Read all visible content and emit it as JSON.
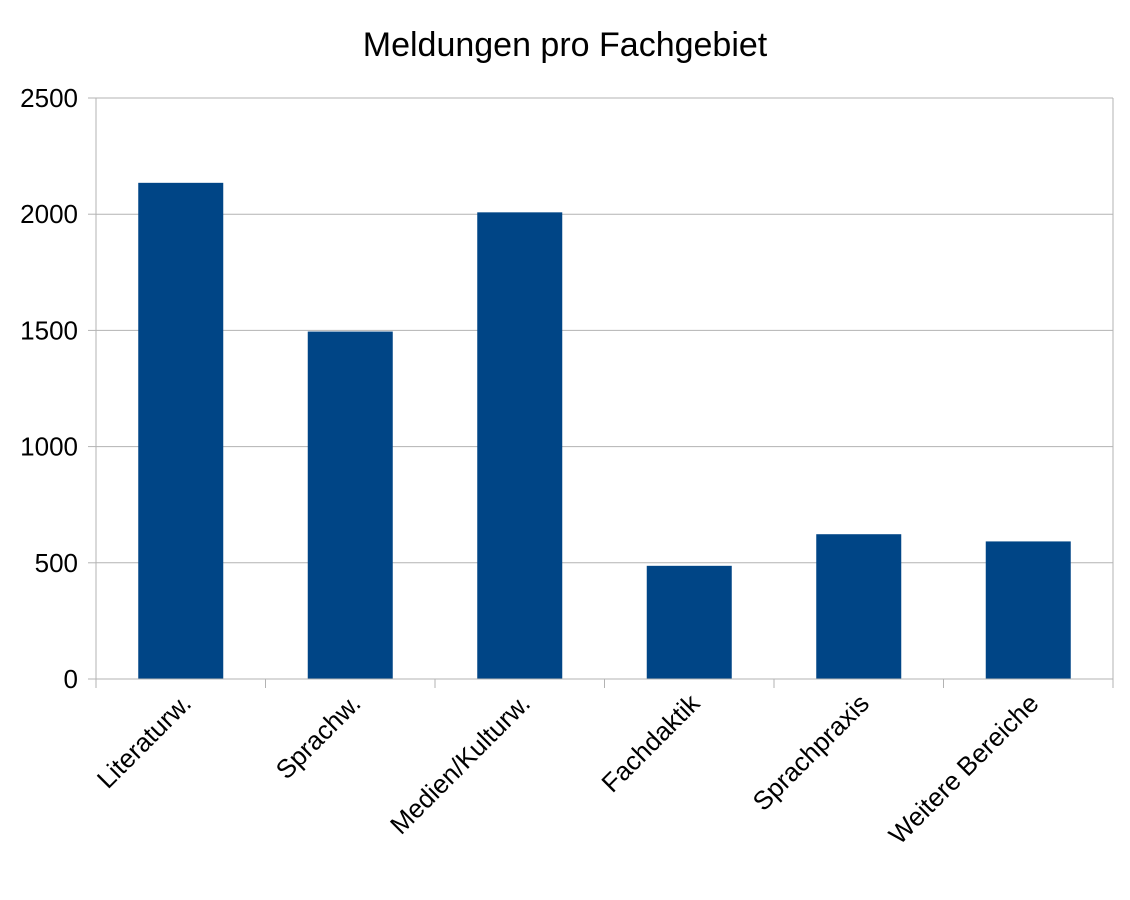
{
  "chart_data": {
    "type": "bar",
    "title": "Meldungen pro Fachgebiet",
    "xlabel": "",
    "ylabel": "",
    "categories": [
      "Literaturw.",
      "Sprachw.",
      "Medien/Kulturw.",
      "Fachdaktik",
      "Sprachpraxis",
      "Weitere Bereiche"
    ],
    "values": [
      2135,
      1495,
      2008,
      487,
      623,
      592
    ],
    "ylim": [
      0,
      2500
    ],
    "yticks": [
      0,
      500,
      1000,
      1500,
      2000,
      2500
    ],
    "grid": true,
    "legend": "none",
    "colors": {
      "bar": "#004586",
      "grid": "#b3b3b3",
      "axis": "#b3b3b3"
    }
  }
}
